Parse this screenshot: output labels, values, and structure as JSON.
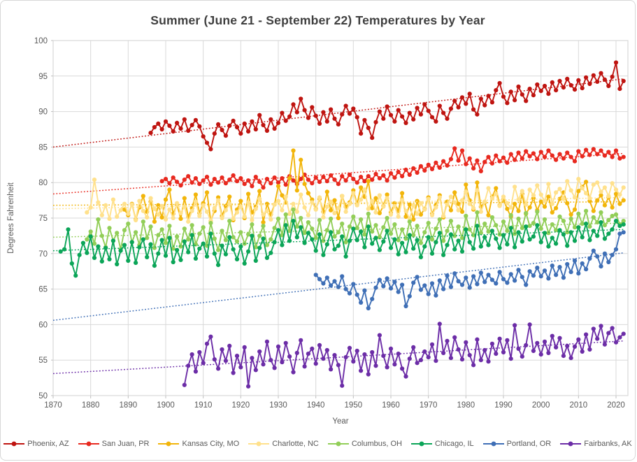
{
  "chart_data": {
    "type": "line",
    "title": "Summer (June 21 - September 22) Temperatures by Year",
    "xlabel": "Year",
    "ylabel": "Degrees Fahrenheit",
    "xlim": [
      1870,
      2022
    ],
    "ylim": [
      50,
      100
    ],
    "x_ticks": [
      1870,
      1880,
      1890,
      1900,
      1910,
      1920,
      1930,
      1940,
      1950,
      1960,
      1970,
      1980,
      1990,
      2000,
      2010,
      2020
    ],
    "y_ticks": [
      50,
      55,
      60,
      65,
      70,
      75,
      80,
      85,
      90,
      95,
      100
    ],
    "grid": true,
    "legend_position": "bottom",
    "trendlines": "dotted linear trend per series, drawn across full 1870-2022 span",
    "trend_span": [
      1870,
      2022
    ],
    "series": [
      {
        "name": "Phoenix, AZ",
        "color": "#BF1410",
        "start_year": 1896,
        "end_year": 2022,
        "trend": [
          85.0,
          94.6
        ],
        "values": [
          87.0,
          87.8,
          88.3,
          87.5,
          88.6,
          88.0,
          87.2,
          88.4,
          87.6,
          88.9,
          87.3,
          88.1,
          88.8,
          87.9,
          86.5,
          85.6,
          84.7,
          86.9,
          88.2,
          87.4,
          86.6,
          88.0,
          88.7,
          87.8,
          86.9,
          88.3,
          87.2,
          88.6,
          87.5,
          89.5,
          88.1,
          87.3,
          88.9,
          87.6,
          88.4,
          89.8,
          88.7,
          89.3,
          91.0,
          89.9,
          91.8,
          90.2,
          89.1,
          90.6,
          89.4,
          88.3,
          89.9,
          88.6,
          90.3,
          89.0,
          88.2,
          89.6,
          90.8,
          89.7,
          90.4,
          89.2,
          86.9,
          88.8,
          87.7,
          86.3,
          88.5,
          90.0,
          89.0,
          90.7,
          89.5,
          88.6,
          90.2,
          89.3,
          88.4,
          89.8,
          88.9,
          90.5,
          89.6,
          91.0,
          90.1,
          89.2,
          88.6,
          90.8,
          89.8,
          89.0,
          90.4,
          91.5,
          90.6,
          92.0,
          91.1,
          92.5,
          90.3,
          89.6,
          91.8,
          90.9,
          92.2,
          91.3,
          93.0,
          94.0,
          92.1,
          91.2,
          92.8,
          91.6,
          93.5,
          92.4,
          91.5,
          93.2,
          92.3,
          93.8,
          92.9,
          93.6,
          92.5,
          94.1,
          93.0,
          94.3,
          93.4,
          94.6,
          93.7,
          93.1,
          94.4,
          93.3,
          94.8,
          93.9,
          95.1,
          94.2,
          95.4,
          94.5,
          93.6,
          94.9,
          96.9,
          93.2,
          94.3
        ]
      },
      {
        "name": "San Juan, PR",
        "color": "#E8291F",
        "start_year": 1899,
        "end_year": 2022,
        "trend": [
          78.4,
          84.1
        ],
        "values": [
          80.2,
          80.5,
          79.9,
          80.7,
          80.1,
          79.6,
          80.4,
          80.9,
          80.0,
          80.6,
          79.8,
          80.3,
          80.8,
          79.7,
          80.5,
          80.0,
          80.7,
          79.9,
          80.4,
          81.0,
          80.2,
          80.6,
          79.8,
          80.3,
          79.5,
          80.8,
          80.1,
          79.3,
          80.5,
          79.9,
          80.7,
          80.0,
          80.6,
          79.7,
          80.9,
          80.3,
          79.8,
          80.5,
          81.1,
          80.4,
          79.9,
          80.7,
          80.1,
          80.8,
          80.2,
          81.0,
          80.4,
          79.8,
          80.9,
          80.3,
          81.1,
          80.5,
          80.0,
          80.8,
          80.2,
          80.9,
          80.4,
          81.2,
          80.6,
          81.0,
          80.3,
          81.3,
          80.7,
          81.5,
          80.9,
          81.8,
          81.1,
          82.0,
          81.4,
          82.3,
          81.7,
          82.5,
          81.9,
          82.8,
          82.1,
          83.0,
          82.4,
          83.3,
          84.8,
          83.1,
          84.5,
          82.6,
          83.4,
          82.0,
          83.1,
          81.6,
          82.9,
          83.6,
          82.7,
          83.8,
          83.0,
          83.5,
          82.8,
          84.0,
          83.2,
          84.2,
          83.4,
          84.4,
          83.7,
          84.1,
          83.3,
          84.3,
          83.6,
          84.5,
          83.8,
          83.2,
          84.0,
          83.4,
          84.2,
          83.6,
          83.0,
          84.4,
          83.7,
          84.6,
          83.9,
          84.7,
          84.0,
          84.5,
          83.8,
          84.3,
          83.6,
          84.5,
          83.4,
          83.6
        ]
      },
      {
        "name": "Kansas City, MO",
        "color": "#F2B50A",
        "start_year": 1889,
        "end_year": 2022,
        "trend": [
          76.8,
          77.3
        ],
        "values": [
          76.2,
          75.4,
          77.0,
          74.8,
          76.5,
          78.1,
          75.9,
          77.3,
          74.5,
          76.8,
          75.1,
          77.6,
          79.0,
          75.6,
          76.9,
          74.9,
          77.8,
          75.2,
          76.4,
          78.3,
          75.7,
          77.1,
          78.6,
          74.6,
          76.0,
          77.9,
          75.3,
          76.7,
          78.0,
          74.7,
          76.2,
          77.4,
          75.0,
          78.4,
          75.8,
          76.6,
          78.8,
          74.4,
          77.0,
          75.5,
          76.9,
          79.5,
          78.2,
          77.2,
          80.6,
          84.5,
          78.9,
          83.2,
          79.8,
          78.5,
          77.6,
          76.3,
          77.7,
          75.9,
          78.7,
          76.1,
          77.5,
          75.0,
          78.1,
          76.6,
          77.2,
          78.9,
          77.0,
          79.3,
          78.0,
          80.2,
          76.4,
          77.8,
          75.7,
          76.7,
          78.3,
          75.8,
          77.1,
          76.0,
          78.5,
          75.2,
          76.9,
          74.8,
          77.4,
          75.5,
          76.3,
          77.9,
          75.6,
          76.8,
          78.2,
          75.1,
          77.3,
          76.1,
          78.6,
          77.0,
          75.9,
          79.7,
          77.5,
          76.2,
          80.0,
          76.6,
          77.2,
          75.4,
          78.0,
          79.2,
          76.8,
          77.6,
          76.3,
          75.2,
          77.0,
          76.0,
          78.4,
          75.6,
          76.5,
          77.8,
          76.1,
          77.3,
          76.6,
          78.0,
          75.8,
          76.4,
          77.7,
          78.6,
          77.1,
          75.5,
          76.2,
          78.8,
          79.4,
          80.1,
          77.4,
          76.0,
          77.5,
          78.2,
          76.8,
          77.9,
          76.5,
          78.4,
          77.0,
          77.5
        ]
      },
      {
        "name": "Charlotte, NC",
        "color": "#FFE18C",
        "start_year": 1879,
        "end_year": 2022,
        "trend": [
          76.3,
          77.9
        ],
        "values": [
          75.8,
          76.5,
          80.4,
          77.2,
          75.4,
          76.8,
          74.9,
          77.6,
          75.2,
          76.1,
          77.0,
          75.6,
          76.9,
          74.7,
          77.4,
          76.0,
          75.1,
          77.8,
          76.3,
          75.5,
          76.7,
          74.8,
          76.2,
          75.0,
          77.1,
          75.7,
          76.6,
          74.5,
          76.0,
          77.3,
          75.3,
          76.8,
          75.9,
          74.6,
          76.4,
          77.5,
          75.0,
          76.1,
          77.0,
          74.9,
          75.8,
          76.6,
          75.2,
          77.2,
          74.7,
          76.3,
          77.7,
          75.5,
          76.0,
          74.8,
          76.9,
          77.4,
          76.1,
          78.0,
          75.6,
          77.0,
          75.9,
          78.3,
          76.5,
          75.4,
          77.2,
          76.2,
          77.9,
          75.1,
          76.6,
          77.3,
          75.7,
          76.4,
          78.1,
          75.9,
          77.0,
          78.5,
          76.8,
          77.6,
          79.0,
          76.3,
          77.4,
          75.8,
          78.2,
          76.6,
          77.8,
          75.5,
          76.7,
          75.2,
          77.5,
          76.0,
          74.9,
          76.8,
          75.6,
          77.1,
          76.2,
          77.7,
          75.4,
          76.5,
          77.9,
          75.3,
          76.9,
          78.0,
          77.2,
          76.1,
          77.5,
          78.7,
          77.0,
          76.4,
          78.9,
          75.9,
          77.3,
          79.2,
          77.8,
          78.4,
          76.7,
          78.0,
          77.1,
          76.5,
          79.4,
          77.6,
          78.8,
          76.9,
          79.0,
          78.2,
          79.6,
          78.3,
          77.4,
          79.8,
          77.0,
          78.6,
          79.1,
          77.7,
          80.2,
          78.9,
          77.9,
          80.5,
          79.2,
          78.5,
          77.8,
          79.7,
          80.0,
          78.7,
          79.3,
          78.1,
          79.9,
          79.0,
          78.3,
          79.3
        ]
      },
      {
        "name": "Columbus, OH",
        "color": "#92CE58",
        "start_year": 1879,
        "end_year": 2022,
        "trend": [
          72.3,
          74.3
        ],
        "values": [
          72.0,
          73.1,
          71.4,
          74.8,
          72.5,
          70.9,
          73.6,
          71.8,
          72.9,
          70.6,
          73.3,
          74.2,
          71.6,
          73.0,
          71.2,
          74.5,
          72.2,
          73.8,
          70.8,
          72.6,
          73.4,
          71.5,
          73.9,
          70.7,
          72.4,
          71.0,
          73.5,
          72.0,
          74.0,
          71.3,
          72.8,
          73.7,
          71.1,
          74.3,
          72.1,
          70.5,
          73.2,
          71.9,
          74.6,
          72.3,
          71.7,
          73.0,
          71.4,
          72.7,
          74.1,
          70.9,
          72.5,
          73.9,
          71.2,
          72.0,
          73.6,
          74.9,
          72.6,
          75.5,
          73.2,
          76.2,
          73.8,
          75.0,
          72.9,
          74.4,
          73.5,
          72.2,
          74.7,
          71.8,
          73.3,
          74.9,
          72.4,
          73.0,
          74.2,
          71.6,
          73.8,
          75.2,
          73.6,
          74.8,
          72.7,
          75.6,
          73.1,
          74.0,
          72.3,
          73.7,
          75.0,
          72.8,
          74.1,
          71.9,
          73.4,
          72.1,
          74.5,
          72.6,
          73.9,
          71.5,
          73.0,
          74.3,
          72.0,
          73.5,
          74.8,
          71.8,
          73.2,
          74.6,
          72.5,
          73.8,
          72.2,
          75.3,
          73.4,
          72.6,
          75.8,
          72.9,
          74.2,
          73.1,
          75.1,
          74.0,
          72.7,
          74.5,
          73.2,
          75.4,
          72.8,
          74.9,
          73.6,
          75.7,
          73.9,
          74.3,
          75.9,
          73.5,
          74.8,
          72.9,
          74.1,
          73.3,
          75.2,
          74.6,
          73.0,
          74.9,
          73.7,
          75.6,
          74.2,
          76.0,
          73.8,
          75.1,
          74.4,
          75.8,
          74.0,
          74.7,
          75.3,
          75.5,
          74.1,
          74.6
        ]
      },
      {
        "name": "Chicago, IL",
        "color": "#0BA558",
        "start_year": 1872,
        "end_year": 2022,
        "trend": [
          70.4,
          73.4
        ],
        "values": [
          70.3,
          70.6,
          73.4,
          68.6,
          66.9,
          69.8,
          71.5,
          70.1,
          72.4,
          69.4,
          71.0,
          68.9,
          70.8,
          69.2,
          71.8,
          68.5,
          70.4,
          71.2,
          69.0,
          71.6,
          68.7,
          70.9,
          72.0,
          69.5,
          71.3,
          68.3,
          70.0,
          71.9,
          69.7,
          72.2,
          68.8,
          70.5,
          69.1,
          71.7,
          70.2,
          72.6,
          69.3,
          70.7,
          71.4,
          69.6,
          72.8,
          70.0,
          68.4,
          71.1,
          69.9,
          72.3,
          70.6,
          69.2,
          71.0,
          68.6,
          70.3,
          72.5,
          69.0,
          70.8,
          72.1,
          69.4,
          70.1,
          71.6,
          73.3,
          71.2,
          74.0,
          71.8,
          74.6,
          72.3,
          73.7,
          71.5,
          72.9,
          72.0,
          70.4,
          72.7,
          69.8,
          71.3,
          73.0,
          70.6,
          71.1,
          72.4,
          69.6,
          71.8,
          73.5,
          71.9,
          73.1,
          70.9,
          73.8,
          71.4,
          72.2,
          70.5,
          71.7,
          73.2,
          70.8,
          72.0,
          69.9,
          71.5,
          70.2,
          72.6,
          70.7,
          71.9,
          69.5,
          71.0,
          72.3,
          70.0,
          71.6,
          72.9,
          69.8,
          71.2,
          72.7,
          70.6,
          71.8,
          70.3,
          73.4,
          71.6,
          70.7,
          73.9,
          71.0,
          72.3,
          71.2,
          73.2,
          72.1,
          70.8,
          72.6,
          71.3,
          73.6,
          70.9,
          73.0,
          71.7,
          73.8,
          72.0,
          72.4,
          74.0,
          71.6,
          72.9,
          71.0,
          72.2,
          71.4,
          73.3,
          72.7,
          71.1,
          73.0,
          71.8,
          73.7,
          72.3,
          74.2,
          71.9,
          73.2,
          72.5,
          74.4,
          72.1,
          72.8,
          73.4,
          74.6,
          73.9,
          74.1
        ]
      },
      {
        "name": "Portland, OR",
        "color": "#3F6FB6",
        "start_year": 1940,
        "end_year": 2022,
        "trend": [
          60.6,
          70.1
        ],
        "values": [
          67.0,
          66.4,
          65.8,
          66.6,
          65.5,
          66.1,
          65.3,
          66.8,
          65.0,
          64.4,
          65.7,
          64.2,
          63.1,
          64.8,
          62.3,
          63.6,
          65.2,
          66.3,
          65.4,
          66.5,
          65.1,
          66.0,
          64.6,
          65.6,
          62.6,
          64.0,
          65.9,
          66.7,
          64.9,
          65.5,
          64.3,
          65.8,
          64.1,
          66.2,
          65.0,
          66.9,
          65.3,
          67.2,
          66.1,
          65.6,
          66.6,
          65.2,
          66.8,
          65.7,
          67.3,
          66.0,
          67.0,
          66.3,
          65.8,
          67.4,
          66.4,
          65.9,
          67.1,
          66.2,
          67.7,
          66.7,
          65.6,
          67.5,
          66.9,
          68.0,
          66.8,
          67.6,
          66.5,
          68.3,
          67.0,
          68.1,
          66.6,
          68.5,
          67.4,
          69.0,
          67.2,
          68.6,
          67.8,
          69.3,
          70.4,
          69.6,
          68.2,
          70.0,
          68.8,
          69.8,
          70.6,
          72.8,
          73.0
        ]
      },
      {
        "name": "Fairbanks, AK",
        "color": "#6C2DA7",
        "start_year": 1905,
        "end_year": 2022,
        "trend": [
          53.1,
          57.7
        ],
        "values": [
          51.5,
          54.2,
          55.8,
          53.4,
          56.1,
          54.6,
          57.3,
          58.3,
          55.1,
          53.8,
          56.5,
          54.9,
          57.0,
          53.2,
          55.6,
          54.0,
          56.8,
          51.3,
          55.3,
          53.6,
          56.2,
          54.4,
          57.6,
          55.0,
          53.9,
          56.9,
          54.7,
          57.4,
          55.5,
          53.3,
          56.0,
          57.8,
          54.1,
          55.9,
          56.6,
          54.5,
          57.1,
          55.2,
          56.4,
          53.7,
          55.7,
          54.3,
          51.4,
          55.4,
          56.7,
          54.8,
          56.3,
          53.5,
          55.8,
          53.0,
          56.1,
          54.2,
          58.5,
          55.6,
          54.0,
          56.6,
          54.4,
          55.9,
          53.8,
          52.7,
          55.2,
          56.8,
          54.6,
          55.0,
          56.2,
          55.4,
          57.2,
          54.9,
          60.1,
          56.0,
          57.7,
          55.3,
          58.2,
          56.5,
          55.1,
          57.5,
          55.7,
          54.3,
          57.9,
          55.0,
          56.4,
          54.8,
          57.3,
          55.9,
          58.0,
          56.1,
          57.8,
          55.2,
          59.9,
          56.6,
          55.5,
          57.1,
          60.0,
          56.3,
          57.4,
          55.8,
          57.6,
          56.0,
          58.4,
          56.8,
          58.1,
          55.6,
          57.0,
          55.3,
          56.9,
          57.9,
          56.2,
          58.6,
          56.5,
          59.4,
          58.0,
          59.8,
          57.2,
          58.8,
          59.5,
          57.5,
          58.2,
          58.7
        ]
      }
    ]
  },
  "style_colors": {
    "grid": "#D9D9D9",
    "plot_border": "#D9D9D9",
    "tick_mark": "#BFBFBF",
    "tick_label": "#595959",
    "title_text": "#3F3F3F",
    "frame_border": "#D7D7D7"
  }
}
